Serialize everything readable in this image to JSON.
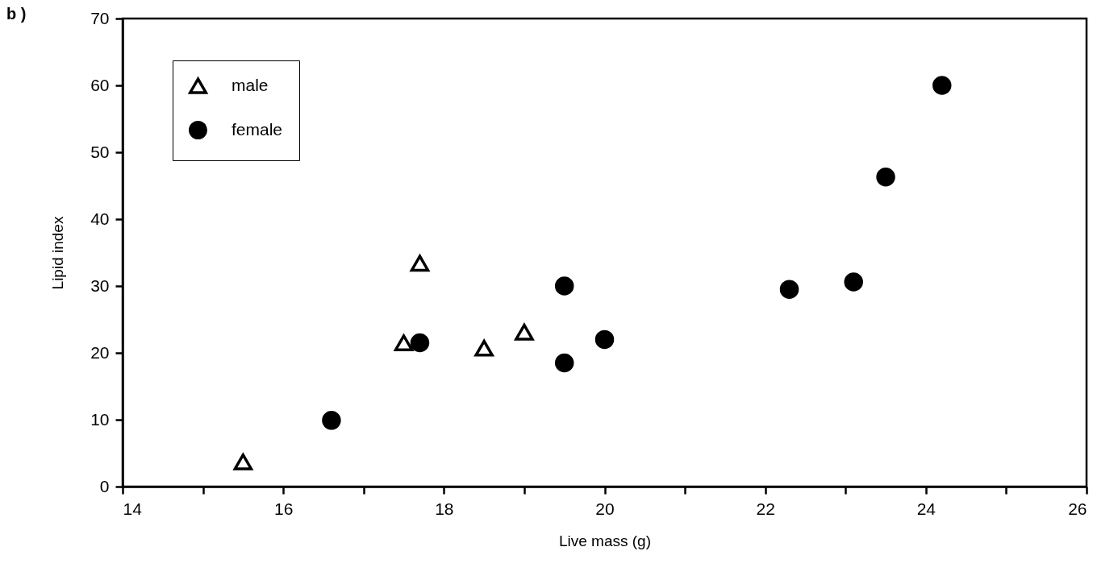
{
  "chart_data": {
    "type": "scatter",
    "xlabel": "Live mass (g)",
    "ylabel": "Lipid index",
    "annotations": [
      "b )"
    ],
    "series": [
      {
        "name": "male",
        "color": "#000000",
        "marker": "triangle",
        "x": [
          15.5,
          17.5,
          17.7,
          18.5,
          19.0
        ],
        "values": [
          3.7,
          21.5,
          33.4,
          20.7,
          23.1
        ]
      },
      {
        "name": "female",
        "color": "#000000",
        "marker": "circle",
        "x": [
          16.6,
          17.7,
          19.5,
          19.5,
          20.0,
          22.3,
          23.1,
          23.5,
          24.2
        ],
        "values": [
          9.9,
          21.5,
          30.0,
          18.5,
          22.0,
          29.5,
          30.6,
          46.3,
          60.0
        ]
      }
    ],
    "xlim": [
      14,
      26
    ],
    "xticks": [
      14,
      {
        "value": 15,
        "label": null
      },
      16,
      {
        "value": 17,
        "label": null
      },
      18,
      {
        "value": 19,
        "label": null
      },
      20,
      {
        "value": 21,
        "label": null
      },
      22,
      {
        "value": 23,
        "label": null
      },
      24,
      {
        "value": 25,
        "label": null
      },
      26
    ],
    "ylim": [
      0,
      70
    ],
    "yticks": [
      0,
      10,
      20,
      30,
      40,
      50,
      60,
      70
    ],
    "grid": false,
    "legend": "top left"
  }
}
